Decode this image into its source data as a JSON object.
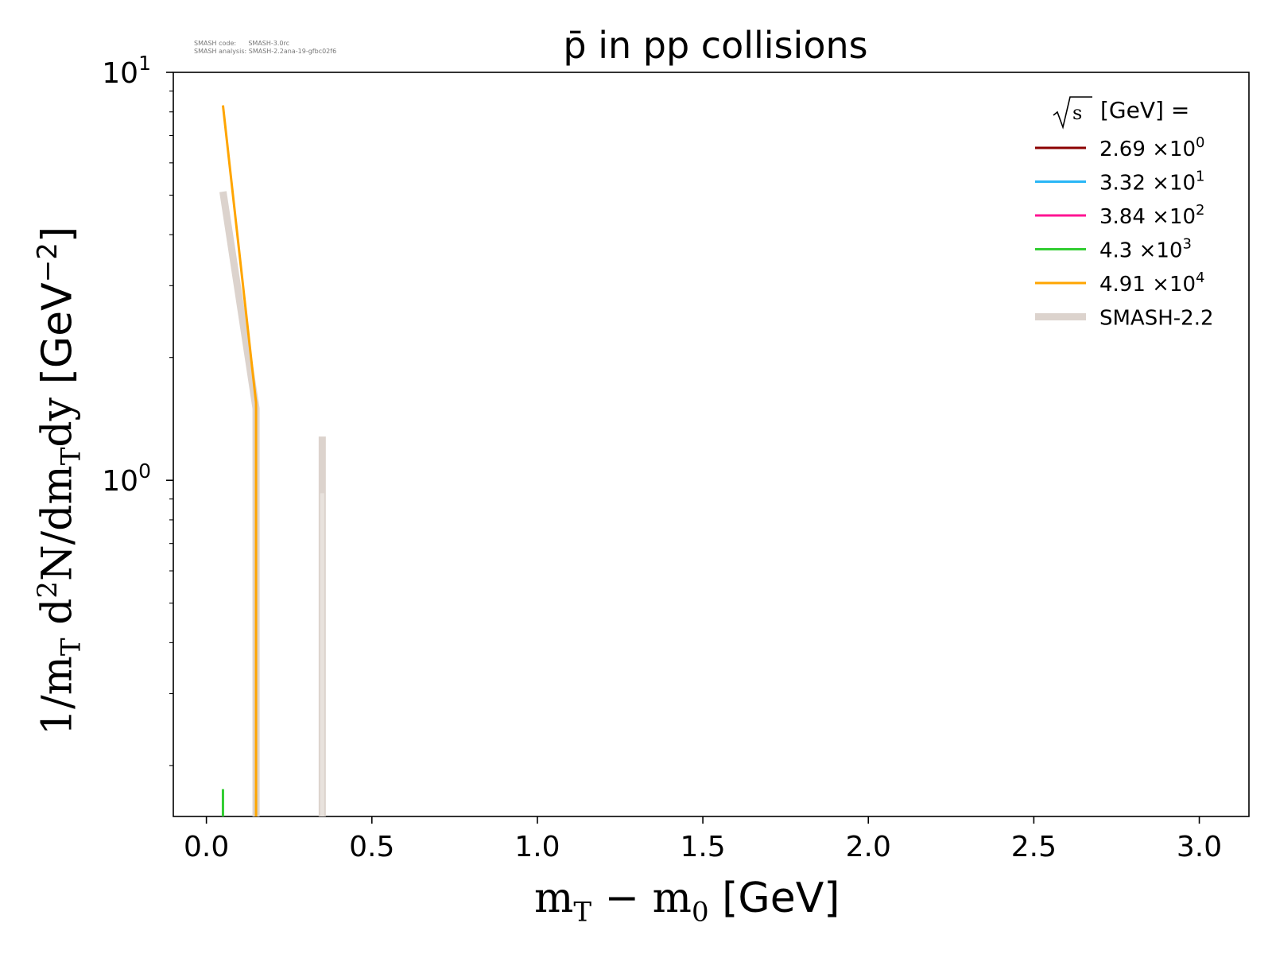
{
  "meta": {
    "code_label": "SMASH code:",
    "code_value": "SMASH-3.0rc",
    "analysis_label": "SMASH analysis:",
    "analysis_value": "SMASH-2.2ana-19-gfbc02f6"
  },
  "chart_data": {
    "type": "line",
    "title": "p̄ in pp collisions",
    "xlabel": {
      "math_main": "m",
      "math_sub1": "T",
      "minus": " − ",
      "math_main2": "m",
      "math_sub2": "0",
      "unit": " [GeV]"
    },
    "ylabel": {
      "prefix": "1/m",
      "sub1": "T",
      "mid": " d",
      "sup": "2",
      "mid2": "N/dm",
      "sub2": "T",
      "end": "dy",
      "unit": " [GeV",
      "unit_sup": "−2",
      "unit_end": "]"
    },
    "x_ticks": [
      "0.0",
      "0.5",
      "1.0",
      "1.5",
      "2.0",
      "2.5",
      "3.0"
    ],
    "y_ticks": [
      {
        "value": 1,
        "base": "10",
        "exp": "0"
      },
      {
        "value": 10,
        "base": "10",
        "exp": "1"
      }
    ],
    "xlim": [
      -0.1,
      3.15
    ],
    "ylim": [
      0.15,
      10
    ],
    "yscale": "log",
    "legend": {
      "title_sqrt": "s",
      "title_text": " [GeV] =",
      "placement": "top-right",
      "entries": [
        {
          "mantissa": "2.69",
          "exp": "0",
          "color": "#8b0000"
        },
        {
          "mantissa": "3.32",
          "exp": "1",
          "color": "#29b6f6"
        },
        {
          "mantissa": "3.84",
          "exp": "2",
          "color": "#ff1493"
        },
        {
          "mantissa": "4.3",
          "exp": "3",
          "color": "#32cd32"
        },
        {
          "mantissa": "4.91",
          "exp": "4",
          "color": "#ffa500"
        },
        {
          "label": "SMASH-2.2",
          "color": "#dcd3cd"
        }
      ],
      "times": "×10"
    },
    "series": [
      {
        "name": "SMASH-2.2",
        "color": "#dcd3cd",
        "width": 9,
        "points": [
          [
            0.05,
            5.1
          ],
          [
            0.15,
            1.5
          ],
          [
            0.15,
            0.15
          ]
        ]
      },
      {
        "name": "SMASH-2.2",
        "color": "#dcd3cd",
        "width": 9,
        "points": [
          [
            0.35,
            1.28
          ],
          [
            0.35,
            0.15
          ]
        ]
      },
      {
        "name": "SMASH-2.2",
        "color": "#e8e2dd",
        "width": 5,
        "points": [
          [
            0.35,
            0.93
          ],
          [
            0.35,
            0.15
          ]
        ]
      },
      {
        "name": "4.3 × 10³",
        "color": "#32cd32",
        "width": 3,
        "points": [
          [
            0.05,
            0.175
          ],
          [
            0.05,
            0.15
          ]
        ]
      },
      {
        "name": "4.3 × 10³",
        "color": "#90d890",
        "width": 3,
        "points": [
          [
            0.15,
            0.17
          ],
          [
            0.15,
            0.15
          ]
        ]
      },
      {
        "name": "4.91 × 10⁴",
        "color": "#ffa500",
        "width": 3,
        "points": [
          [
            0.05,
            8.3
          ],
          [
            0.15,
            1.55
          ],
          [
            0.15,
            0.15
          ]
        ]
      }
    ]
  }
}
